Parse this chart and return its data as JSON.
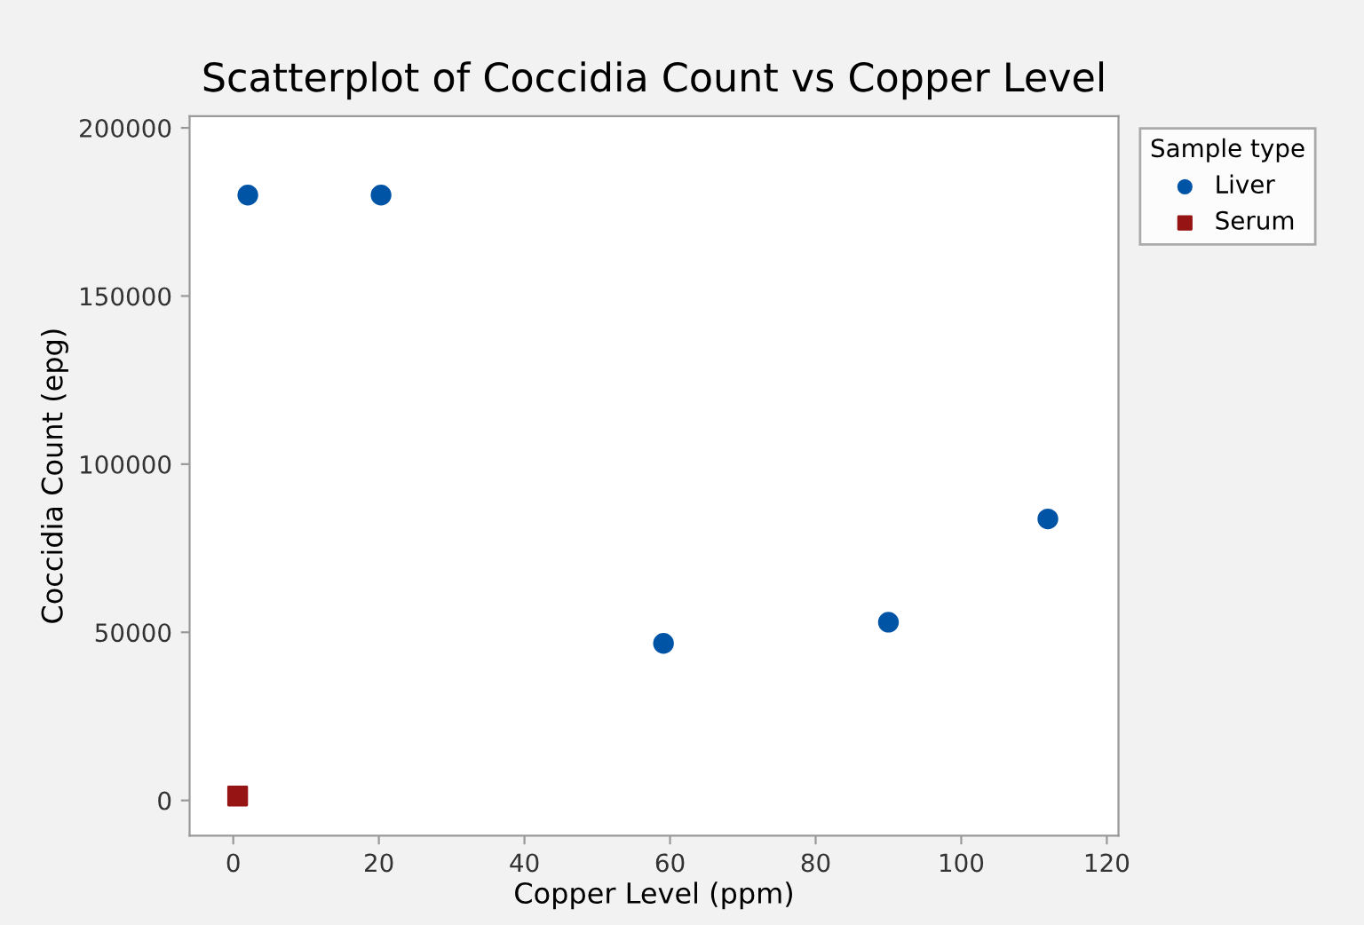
{
  "chart_data": {
    "type": "scatter",
    "title": "Scatterplot of Coccidia Count vs Copper Level",
    "xlabel": "Copper Level (ppm)",
    "ylabel": "Coccidia Count (epg)",
    "legend_title": "Sample type",
    "legend": "top right",
    "grid": false,
    "series": [
      {
        "name": "Liver",
        "color": "#0054a6",
        "marker": "circle",
        "x": [
          2.0,
          20.3,
          59.1,
          90.0,
          111.9
        ],
        "values": [
          180000,
          180000,
          46700,
          53000,
          83700
        ]
      },
      {
        "name": "Serum",
        "color": "#961414",
        "marker": "square",
        "x": [
          0.6
        ],
        "values": [
          1300
        ]
      }
    ],
    "xlim": [
      -6,
      121.6
    ],
    "ylim": [
      -10500,
      203500
    ],
    "xticks": [
      0,
      20,
      40,
      60,
      80,
      100,
      120
    ],
    "yticks": [
      0,
      50000,
      100000,
      150000,
      200000
    ]
  }
}
